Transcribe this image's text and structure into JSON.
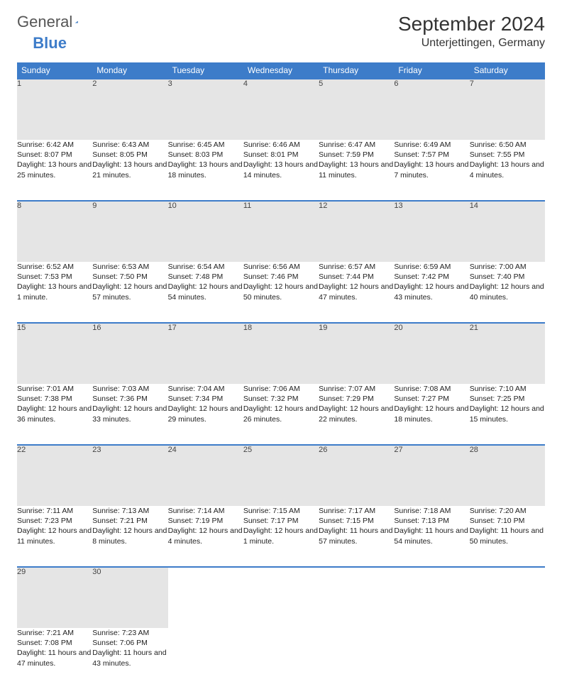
{
  "brand": {
    "part1": "General",
    "part2": "Blue"
  },
  "title": "September 2024",
  "location": "Unterjettingen, Germany",
  "colors": {
    "header_bg": "#3d7cc9",
    "daynum_bg": "#e5e5e5",
    "border": "#3d7cc9",
    "text": "#222222",
    "bg": "#ffffff"
  },
  "typography": {
    "title_fontsize": 28,
    "location_fontsize": 16,
    "header_fontsize": 12,
    "cell_fontsize": 10.5
  },
  "weekdays": [
    "Sunday",
    "Monday",
    "Tuesday",
    "Wednesday",
    "Thursday",
    "Friday",
    "Saturday"
  ],
  "grid": {
    "cols": 7,
    "rows": 5
  },
  "days": [
    {
      "n": "1",
      "sunrise": "Sunrise: 6:42 AM",
      "sunset": "Sunset: 8:07 PM",
      "daylight": "Daylight: 13 hours and 25 minutes."
    },
    {
      "n": "2",
      "sunrise": "Sunrise: 6:43 AM",
      "sunset": "Sunset: 8:05 PM",
      "daylight": "Daylight: 13 hours and 21 minutes."
    },
    {
      "n": "3",
      "sunrise": "Sunrise: 6:45 AM",
      "sunset": "Sunset: 8:03 PM",
      "daylight": "Daylight: 13 hours and 18 minutes."
    },
    {
      "n": "4",
      "sunrise": "Sunrise: 6:46 AM",
      "sunset": "Sunset: 8:01 PM",
      "daylight": "Daylight: 13 hours and 14 minutes."
    },
    {
      "n": "5",
      "sunrise": "Sunrise: 6:47 AM",
      "sunset": "Sunset: 7:59 PM",
      "daylight": "Daylight: 13 hours and 11 minutes."
    },
    {
      "n": "6",
      "sunrise": "Sunrise: 6:49 AM",
      "sunset": "Sunset: 7:57 PM",
      "daylight": "Daylight: 13 hours and 7 minutes."
    },
    {
      "n": "7",
      "sunrise": "Sunrise: 6:50 AM",
      "sunset": "Sunset: 7:55 PM",
      "daylight": "Daylight: 13 hours and 4 minutes."
    },
    {
      "n": "8",
      "sunrise": "Sunrise: 6:52 AM",
      "sunset": "Sunset: 7:53 PM",
      "daylight": "Daylight: 13 hours and 1 minute."
    },
    {
      "n": "9",
      "sunrise": "Sunrise: 6:53 AM",
      "sunset": "Sunset: 7:50 PM",
      "daylight": "Daylight: 12 hours and 57 minutes."
    },
    {
      "n": "10",
      "sunrise": "Sunrise: 6:54 AM",
      "sunset": "Sunset: 7:48 PM",
      "daylight": "Daylight: 12 hours and 54 minutes."
    },
    {
      "n": "11",
      "sunrise": "Sunrise: 6:56 AM",
      "sunset": "Sunset: 7:46 PM",
      "daylight": "Daylight: 12 hours and 50 minutes."
    },
    {
      "n": "12",
      "sunrise": "Sunrise: 6:57 AM",
      "sunset": "Sunset: 7:44 PM",
      "daylight": "Daylight: 12 hours and 47 minutes."
    },
    {
      "n": "13",
      "sunrise": "Sunrise: 6:59 AM",
      "sunset": "Sunset: 7:42 PM",
      "daylight": "Daylight: 12 hours and 43 minutes."
    },
    {
      "n": "14",
      "sunrise": "Sunrise: 7:00 AM",
      "sunset": "Sunset: 7:40 PM",
      "daylight": "Daylight: 12 hours and 40 minutes."
    },
    {
      "n": "15",
      "sunrise": "Sunrise: 7:01 AM",
      "sunset": "Sunset: 7:38 PM",
      "daylight": "Daylight: 12 hours and 36 minutes."
    },
    {
      "n": "16",
      "sunrise": "Sunrise: 7:03 AM",
      "sunset": "Sunset: 7:36 PM",
      "daylight": "Daylight: 12 hours and 33 minutes."
    },
    {
      "n": "17",
      "sunrise": "Sunrise: 7:04 AM",
      "sunset": "Sunset: 7:34 PM",
      "daylight": "Daylight: 12 hours and 29 minutes."
    },
    {
      "n": "18",
      "sunrise": "Sunrise: 7:06 AM",
      "sunset": "Sunset: 7:32 PM",
      "daylight": "Daylight: 12 hours and 26 minutes."
    },
    {
      "n": "19",
      "sunrise": "Sunrise: 7:07 AM",
      "sunset": "Sunset: 7:29 PM",
      "daylight": "Daylight: 12 hours and 22 minutes."
    },
    {
      "n": "20",
      "sunrise": "Sunrise: 7:08 AM",
      "sunset": "Sunset: 7:27 PM",
      "daylight": "Daylight: 12 hours and 18 minutes."
    },
    {
      "n": "21",
      "sunrise": "Sunrise: 7:10 AM",
      "sunset": "Sunset: 7:25 PM",
      "daylight": "Daylight: 12 hours and 15 minutes."
    },
    {
      "n": "22",
      "sunrise": "Sunrise: 7:11 AM",
      "sunset": "Sunset: 7:23 PM",
      "daylight": "Daylight: 12 hours and 11 minutes."
    },
    {
      "n": "23",
      "sunrise": "Sunrise: 7:13 AM",
      "sunset": "Sunset: 7:21 PM",
      "daylight": "Daylight: 12 hours and 8 minutes."
    },
    {
      "n": "24",
      "sunrise": "Sunrise: 7:14 AM",
      "sunset": "Sunset: 7:19 PM",
      "daylight": "Daylight: 12 hours and 4 minutes."
    },
    {
      "n": "25",
      "sunrise": "Sunrise: 7:15 AM",
      "sunset": "Sunset: 7:17 PM",
      "daylight": "Daylight: 12 hours and 1 minute."
    },
    {
      "n": "26",
      "sunrise": "Sunrise: 7:17 AM",
      "sunset": "Sunset: 7:15 PM",
      "daylight": "Daylight: 11 hours and 57 minutes."
    },
    {
      "n": "27",
      "sunrise": "Sunrise: 7:18 AM",
      "sunset": "Sunset: 7:13 PM",
      "daylight": "Daylight: 11 hours and 54 minutes."
    },
    {
      "n": "28",
      "sunrise": "Sunrise: 7:20 AM",
      "sunset": "Sunset: 7:10 PM",
      "daylight": "Daylight: 11 hours and 50 minutes."
    },
    {
      "n": "29",
      "sunrise": "Sunrise: 7:21 AM",
      "sunset": "Sunset: 7:08 PM",
      "daylight": "Daylight: 11 hours and 47 minutes."
    },
    {
      "n": "30",
      "sunrise": "Sunrise: 7:23 AM",
      "sunset": "Sunset: 7:06 PM",
      "daylight": "Daylight: 11 hours and 43 minutes."
    }
  ]
}
